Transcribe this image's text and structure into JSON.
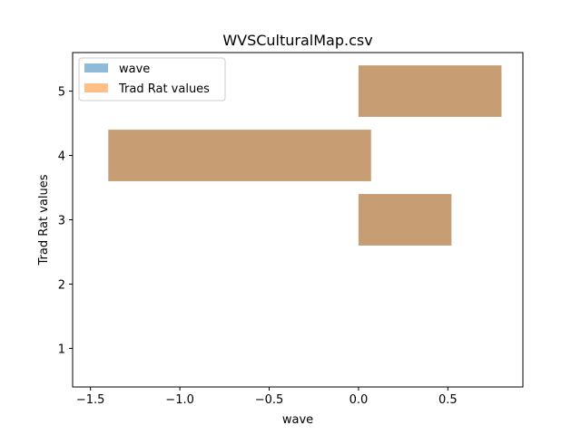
{
  "chart_data": {
    "type": "bar",
    "orientation": "horizontal",
    "title": "WVSCulturalMap.csv",
    "xlabel": "wave",
    "ylabel": "Trad Rat values",
    "xlim": [
      -1.6,
      0.92
    ],
    "ylim": [
      0.4,
      5.6
    ],
    "xticks": [
      -1.5,
      -1.0,
      -0.5,
      0.0,
      0.5
    ],
    "xtick_labels": [
      "−1.5",
      "−1.0",
      "−0.5",
      "0.0",
      "0.5"
    ],
    "yticks": [
      1,
      2,
      3,
      4,
      5
    ],
    "ytick_labels": [
      "1",
      "2",
      "3",
      "4",
      "5"
    ],
    "grid": false,
    "legend_position": "top-left",
    "categories": [
      3,
      4,
      5
    ],
    "series": [
      {
        "name": "wave",
        "color": "#1f77b4",
        "opacity": 0.5,
        "values": [
          0.52,
          -1.47,
          0.8
        ],
        "bases": [
          0,
          0.07,
          0
        ]
      },
      {
        "name": "Trad Rat values",
        "color": "#ff7f0e",
        "opacity": 0.5,
        "values": [
          0.52,
          -1.47,
          0.8
        ],
        "bases": [
          0,
          0.07,
          0
        ]
      }
    ]
  }
}
